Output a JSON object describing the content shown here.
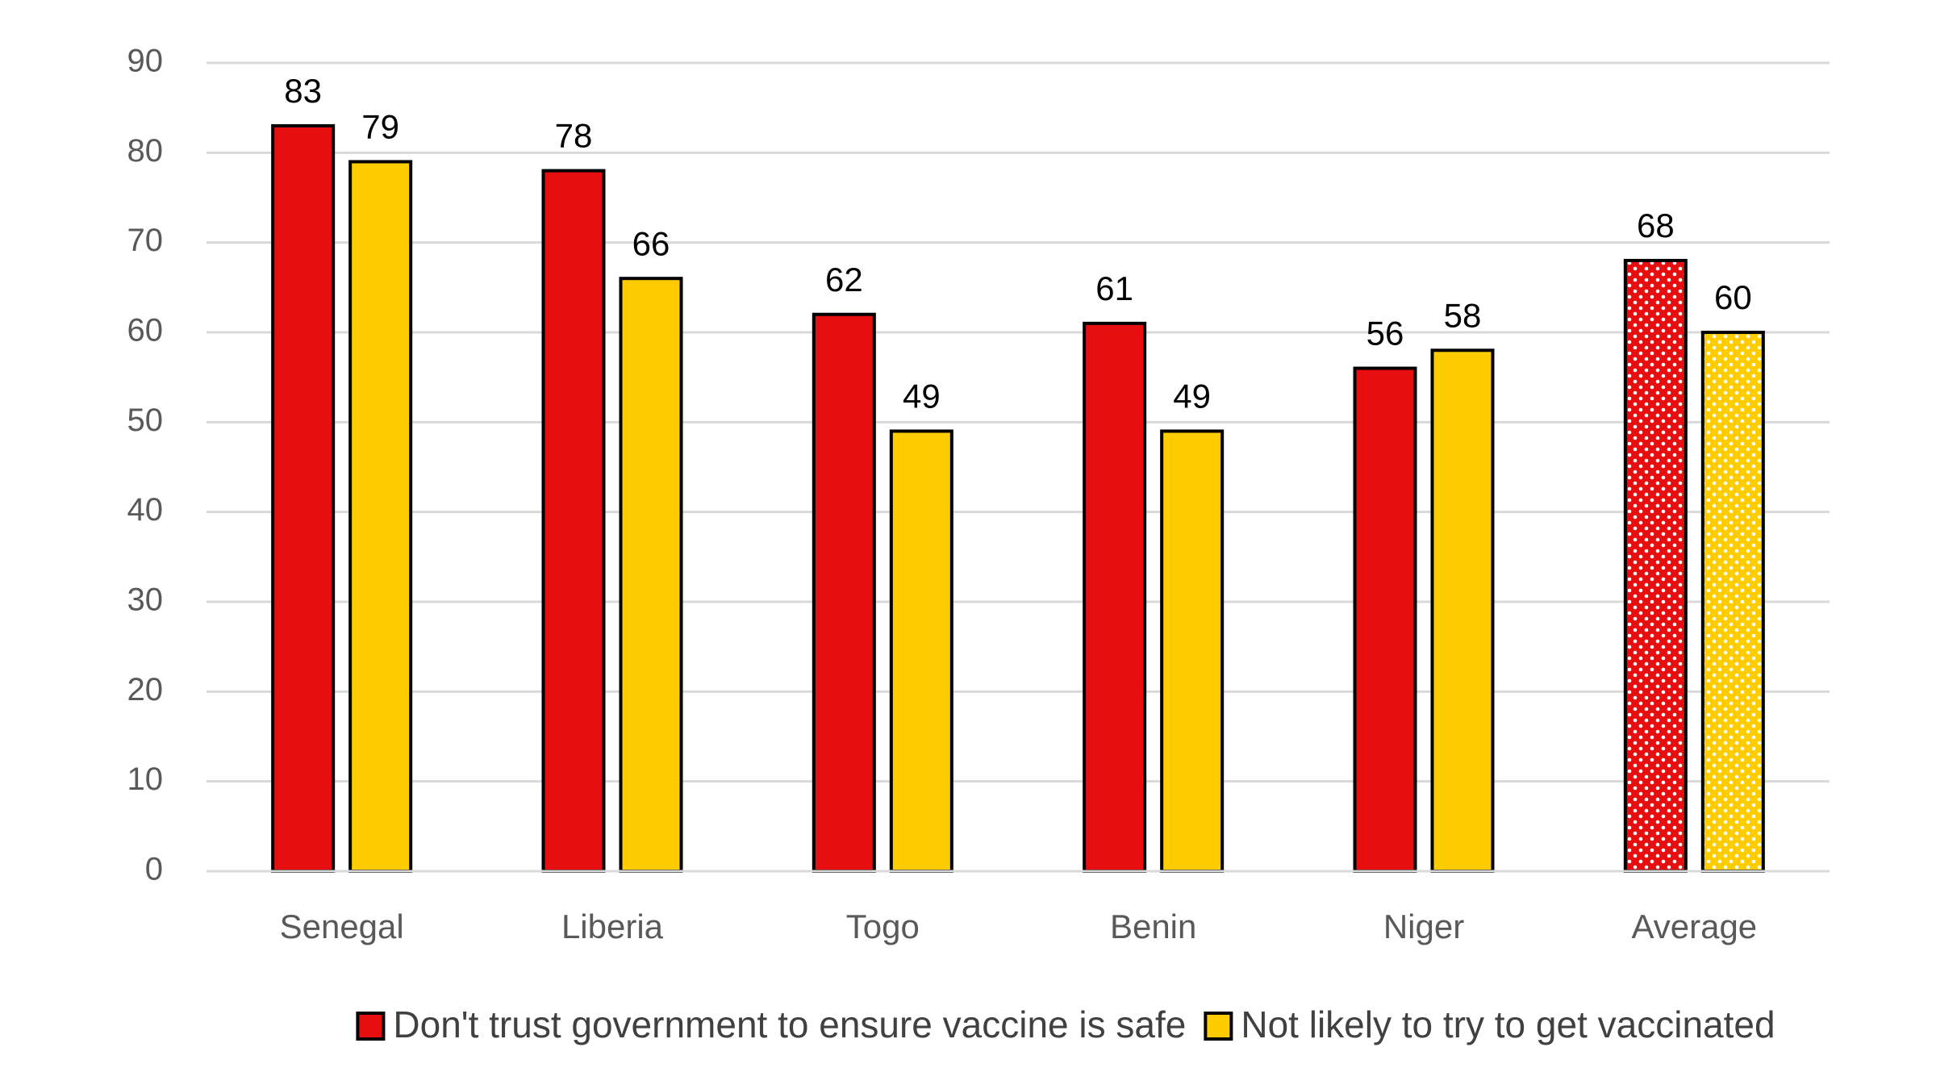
{
  "chart_data": {
    "type": "bar",
    "categories": [
      "Senegal",
      "Liberia",
      "Togo",
      "Benin",
      "Niger",
      "Average"
    ],
    "series": [
      {
        "name": "Don't trust government to ensure vaccine is safe",
        "color": "#e60e0e",
        "values": [
          83,
          78,
          62,
          61,
          56,
          68
        ]
      },
      {
        "name": "Not likely to try to get vaccinated",
        "color": "#ffcc00",
        "values": [
          79,
          66,
          49,
          49,
          58,
          60
        ]
      }
    ],
    "ylim": [
      0,
      90
    ],
    "yticks": [
      0,
      10,
      20,
      30,
      40,
      50,
      60,
      70,
      80,
      90
    ],
    "grid": true,
    "legend": "bottom"
  }
}
